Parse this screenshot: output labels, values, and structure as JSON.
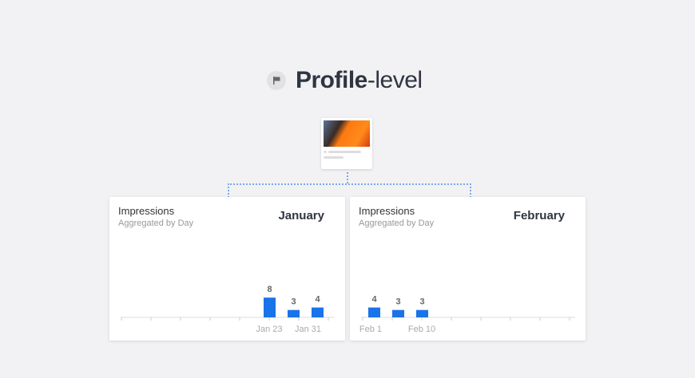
{
  "header": {
    "title_bold": "Profile",
    "title_light": "-level",
    "icon": "flag-icon"
  },
  "post_thumbnail": {
    "icon": "post-preview"
  },
  "colors": {
    "bar": "#1a73e8",
    "connector": "#7aa7f0"
  },
  "chart_data": [
    {
      "type": "bar",
      "title": "Impressions",
      "subtitle": "Aggregated by Day",
      "month": "January",
      "values": [
        8,
        3,
        4
      ],
      "data_labels": [
        "8",
        "3",
        "4"
      ],
      "x_tick_labels": [
        "Jan 23",
        "Jan 31"
      ],
      "grid": false
    },
    {
      "type": "bar",
      "title": "Impressions",
      "subtitle": "Aggregated by Day",
      "month": "February",
      "values": [
        4,
        3,
        3
      ],
      "data_labels": [
        "4",
        "3",
        "3"
      ],
      "x_tick_labels": [
        "Feb 1",
        "Feb 10"
      ],
      "grid": false
    }
  ]
}
